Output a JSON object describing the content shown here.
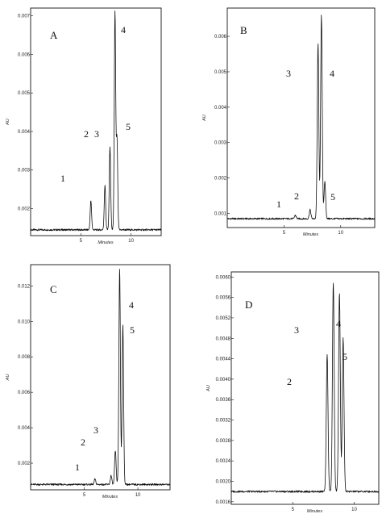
{
  "chart_data": [
    {
      "type": "line",
      "panel_label": "A",
      "ylabel": "AU",
      "xlabel": "Minutes",
      "xlim": [
        0,
        13
      ],
      "ylim": [
        0.0013,
        0.0072
      ],
      "x_ticks": [
        "5",
        "10"
      ],
      "x_tick_values": [
        5,
        10
      ],
      "y_ticks": [
        "0.002",
        "0.003",
        "0.004",
        "0.005",
        "0.006",
        "0.007"
      ],
      "y_tick_values": [
        0.002,
        0.003,
        0.004,
        0.005,
        0.006,
        0.007
      ],
      "baseline": 0.00145,
      "peaks": [
        {
          "label": "1",
          "x": 6.0,
          "y": 0.0022
        },
        {
          "label": "2",
          "x": 7.4,
          "y": 0.0026
        },
        {
          "label": "3",
          "x": 7.9,
          "y": 0.0036
        },
        {
          "label": "4",
          "x": 8.4,
          "y": 0.0071
        },
        {
          "label": "5",
          "x": 8.6,
          "y": 0.0038
        }
      ]
    },
    {
      "type": "line",
      "panel_label": "B",
      "ylabel": "AU",
      "xlabel": "Minutes",
      "xlim": [
        0,
        13
      ],
      "ylim": [
        0.0006,
        0.0068
      ],
      "x_ticks": [
        "5",
        "10"
      ],
      "x_tick_values": [
        5,
        10
      ],
      "y_ticks": [
        "0.001",
        "0.002",
        "0.003",
        "0.004",
        "0.005",
        "0.006"
      ],
      "y_tick_values": [
        0.001,
        0.002,
        0.003,
        0.004,
        0.005,
        0.006
      ],
      "baseline": 0.00085,
      "peaks": [
        {
          "label": "1",
          "x": 6.0,
          "y": 0.00095
        },
        {
          "label": "2",
          "x": 7.3,
          "y": 0.0011
        },
        {
          "label": "3",
          "x": 8.0,
          "y": 0.0058
        },
        {
          "label": "4",
          "x": 8.3,
          "y": 0.0066
        },
        {
          "label": "5",
          "x": 8.6,
          "y": 0.0019
        }
      ]
    },
    {
      "type": "line",
      "panel_label": "C",
      "ylabel": "AU",
      "xlabel": "Minutes",
      "xlim": [
        0,
        13
      ],
      "ylim": [
        0.0005,
        0.0132
      ],
      "x_ticks": [
        "5",
        "10"
      ],
      "x_tick_values": [
        5,
        10
      ],
      "y_ticks": [
        "0.002",
        "0.004",
        "0.006",
        "0.008",
        "0.010",
        "0.012"
      ],
      "y_tick_values": [
        0.002,
        0.004,
        0.006,
        0.008,
        0.01,
        0.012
      ],
      "baseline": 0.0008,
      "peaks": [
        {
          "label": "1",
          "x": 6.0,
          "y": 0.0011
        },
        {
          "label": "2",
          "x": 7.5,
          "y": 0.0013
        },
        {
          "label": "3",
          "x": 7.9,
          "y": 0.0027
        },
        {
          "label": "4",
          "x": 8.3,
          "y": 0.013
        },
        {
          "label": "5",
          "x": 8.6,
          "y": 0.0098
        }
      ]
    },
    {
      "type": "line",
      "panel_label": "D",
      "ylabel": "AU",
      "xlabel": "Minutes",
      "xlim": [
        0,
        12
      ],
      "ylim": [
        0.00155,
        0.0061
      ],
      "x_ticks": [
        "5",
        "10"
      ],
      "x_tick_values": [
        5,
        10
      ],
      "y_ticks": [
        "0.0016",
        "0.0020",
        "0.0024",
        "0.0028",
        "0.0032",
        "0.0036",
        "0.0040",
        "0.0044",
        "0.0048",
        "0.0052",
        "0.0056",
        "0.0060"
      ],
      "y_tick_values": [
        0.0016,
        0.002,
        0.0024,
        0.0028,
        0.0032,
        0.0036,
        0.004,
        0.0044,
        0.0048,
        0.0052,
        0.0056,
        0.006
      ],
      "baseline": 0.0018,
      "peaks": [
        {
          "label": "2",
          "x": 7.8,
          "y": 0.0045
        },
        {
          "label": "3",
          "x": 8.3,
          "y": 0.0059
        },
        {
          "label": "4",
          "x": 8.8,
          "y": 0.0057
        },
        {
          "label": "5",
          "x": 9.1,
          "y": 0.0048
        }
      ]
    }
  ]
}
